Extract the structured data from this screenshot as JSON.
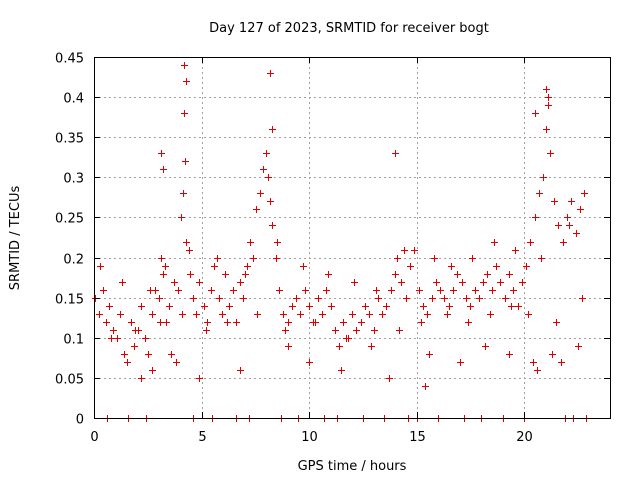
{
  "chart_data": {
    "type": "scatter",
    "title": "Day 127 of 2023, SRMTID for receiver bogt",
    "xlabel": "GPS time / hours",
    "ylabel": "SRMTID / TECUs",
    "xlim": [
      0,
      24
    ],
    "ylim": [
      0,
      0.45
    ],
    "x_ticks": [
      0,
      5,
      10,
      15,
      20
    ],
    "x_tick_labels": [
      "0",
      "5",
      "10",
      "15",
      "20"
    ],
    "y_ticks": [
      0,
      0.05,
      0.1,
      0.15,
      0.2,
      0.25,
      0.3,
      0.35,
      0.4,
      0.45
    ],
    "y_tick_labels": [
      "0",
      "0.05",
      "0.1",
      "0.15",
      "0.2",
      "0.25",
      "0.3",
      "0.35",
      "0.4",
      "0.45"
    ],
    "grid": true,
    "marker": "plus",
    "marker_color": "#e00000",
    "series": [
      {
        "name": "SRMTID",
        "x": [
          0.05,
          0.25,
          0.4,
          0.55,
          0.7,
          0.9,
          1.05,
          1.2,
          1.4,
          1.55,
          1.7,
          1.85,
          2.05,
          2.2,
          2.35,
          2.5,
          2.7,
          2.85,
          3.0,
          3.1,
          3.2,
          3.35,
          3.5,
          3.7,
          3.9,
          4.05,
          4.15,
          4.2,
          4.25,
          4.3,
          4.45,
          4.6,
          4.75,
          4.9,
          5.1,
          5.25,
          5.45,
          5.6,
          5.8,
          5.95,
          6.1,
          6.3,
          6.45,
          6.6,
          6.8,
          6.95,
          7.1,
          7.25,
          7.4,
          7.55,
          7.7,
          7.85,
          8.0,
          8.1,
          8.2,
          8.3,
          8.45,
          8.6,
          8.8,
          9.0,
          9.2,
          9.4,
          9.6,
          9.8,
          10.0,
          10.2,
          10.4,
          10.6,
          10.8,
          11.0,
          11.2,
          11.4,
          11.6,
          11.8,
          12.0,
          12.2,
          12.4,
          12.6,
          12.8,
          13.0,
          13.2,
          13.4,
          13.6,
          13.8,
          14.0,
          14.1,
          14.3,
          14.5,
          14.7,
          14.9,
          15.1,
          15.3,
          15.5,
          15.7,
          15.9,
          16.1,
          16.3,
          16.5,
          16.7,
          16.9,
          17.1,
          17.3,
          17.5,
          17.7,
          17.9,
          18.1,
          18.3,
          18.5,
          18.7,
          18.9,
          19.1,
          19.3,
          19.5,
          19.7,
          19.9,
          20.1,
          20.3,
          20.5,
          20.7,
          20.9,
          21.0,
          21.1,
          21.2,
          21.4,
          21.6,
          21.8,
          22.0,
          22.2,
          22.4,
          22.6,
          22.8,
          2.2,
          2.7,
          3.6,
          3.8,
          4.9,
          6.8,
          9.0,
          10.0,
          11.5,
          13.7,
          15.4,
          15.6,
          17.0,
          18.2,
          19.3,
          20.4,
          20.6,
          21.3,
          21.7,
          22.5,
          0.3,
          1.3,
          2.6,
          3.3,
          4.4,
          5.7,
          7.0,
          8.5,
          9.7,
          10.9,
          12.1,
          13.1,
          14.4,
          15.8,
          16.6,
          17.6,
          18.6,
          19.6,
          20.8,
          22.1,
          0.8,
          1.9,
          3.05,
          4.1,
          5.2,
          6.2,
          7.6,
          8.9,
          10.3,
          11.7,
          12.9,
          14.2,
          15.2,
          16.4,
          17.4,
          18.4,
          19.4,
          20.2,
          21.5,
          22.7,
          4.2,
          4.3,
          8.2,
          8.3,
          21.0,
          21.1,
          20.5,
          14.0,
          3.1,
          3.2,
          0.6,
          1.6,
          2.4,
          4.6,
          5.5,
          6.6,
          7.2,
          8.7,
          9.5,
          10.7,
          11.3,
          12.5,
          13.5,
          14.6,
          15.0,
          16.0,
          17.2,
          18.0,
          19.0,
          20.0,
          21.9,
          22.3,
          22.9
        ],
        "y": [
          0.15,
          0.13,
          0.16,
          0.12,
          0.14,
          0.11,
          0.1,
          0.13,
          0.08,
          0.07,
          0.12,
          0.09,
          0.11,
          0.14,
          0.1,
          0.08,
          0.13,
          0.16,
          0.15,
          0.2,
          0.18,
          0.12,
          0.14,
          0.17,
          0.16,
          0.25,
          0.28,
          0.38,
          0.32,
          0.22,
          0.18,
          0.15,
          0.13,
          0.17,
          0.14,
          0.12,
          0.16,
          0.19,
          0.15,
          0.13,
          0.18,
          0.14,
          0.16,
          0.12,
          0.17,
          0.15,
          0.19,
          0.22,
          0.2,
          0.26,
          0.28,
          0.31,
          0.33,
          0.3,
          0.27,
          0.24,
          0.2,
          0.16,
          0.13,
          0.12,
          0.14,
          0.15,
          0.13,
          0.16,
          0.14,
          0.12,
          0.15,
          0.13,
          0.16,
          0.14,
          0.11,
          0.09,
          0.12,
          0.1,
          0.13,
          0.11,
          0.12,
          0.14,
          0.13,
          0.11,
          0.15,
          0.13,
          0.14,
          0.16,
          0.18,
          0.2,
          0.17,
          0.15,
          0.19,
          0.21,
          0.16,
          0.14,
          0.13,
          0.15,
          0.17,
          0.16,
          0.15,
          0.14,
          0.16,
          0.18,
          0.17,
          0.15,
          0.14,
          0.16,
          0.15,
          0.17,
          0.18,
          0.16,
          0.19,
          0.17,
          0.15,
          0.18,
          0.16,
          0.14,
          0.17,
          0.19,
          0.22,
          0.25,
          0.28,
          0.3,
          0.36,
          0.39,
          0.33,
          0.27,
          0.24,
          0.22,
          0.25,
          0.27,
          0.23,
          0.26,
          0.28,
          0.05,
          0.06,
          0.08,
          0.07,
          0.05,
          0.06,
          0.09,
          0.07,
          0.06,
          0.05,
          0.04,
          0.08,
          0.07,
          0.09,
          0.08,
          0.07,
          0.06,
          0.08,
          0.07,
          0.09,
          0.19,
          0.17,
          0.16,
          0.19,
          0.21,
          0.2,
          0.18,
          0.22,
          0.19,
          0.18,
          0.17,
          0.16,
          0.21,
          0.2,
          0.19,
          0.2,
          0.22,
          0.21,
          0.2,
          0.24,
          0.1,
          0.11,
          0.12,
          0.13,
          0.11,
          0.12,
          0.13,
          0.11,
          0.12,
          0.1,
          0.09,
          0.11,
          0.12,
          0.13,
          0.12,
          0.13,
          0.14,
          0.13,
          0.12,
          0.15,
          0.44,
          0.42,
          0.43,
          0.36,
          0.41,
          0.4,
          0.38,
          0.33,
          0.33,
          0.31,
          0.0,
          0.0,
          0.0,
          0.0,
          0.0,
          0.0,
          0.0,
          0.0,
          0.0,
          0.0,
          0.0,
          0.0,
          0.0,
          0.0,
          0.0,
          0.0,
          0.0,
          0.0,
          0.0,
          0.0,
          0.0,
          0.0,
          0.0
        ]
      }
    ]
  }
}
